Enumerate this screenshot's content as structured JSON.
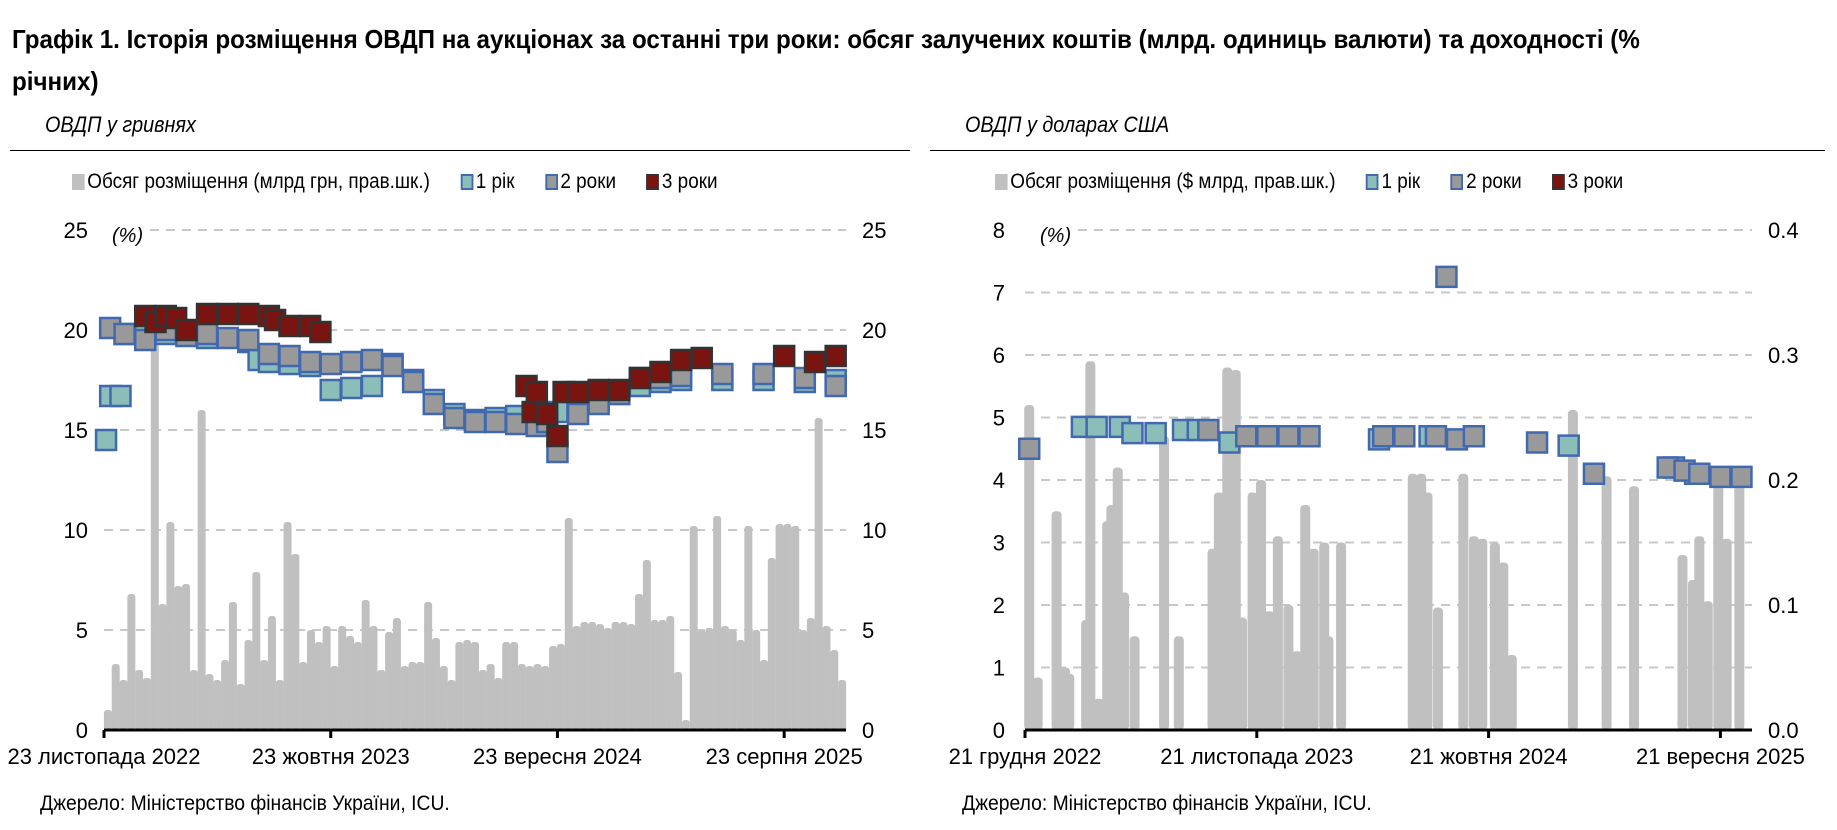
{
  "title": "Графік 1. Історія розміщення ОВДП на аукціонах за останні три роки: обсяг залучених коштів (млрд. одиниць валюти) та доходності (% річних)",
  "source_left": "Джерело: Міністерство фінансів України, ICU.",
  "source_right": "Джерело: Міністерство фінансів України, ICU.",
  "colors": {
    "bar": "#c0c0c0",
    "y1": "#8bbdb9",
    "y2": "#999999",
    "y3": "#7a1410",
    "border": "#4169b0",
    "border3": "#333333"
  },
  "chart_data": [
    {
      "type": "bar+scatter",
      "title": "ОВДП у гривнях",
      "unit_label": "(%)",
      "legend": [
        "Обсяг розміщення (млрд грн, прав.шк.)",
        "1 рік",
        "2 роки",
        "3 роки"
      ],
      "legend_placement": "top",
      "x_unit": "months since 23 Nov 2022",
      "x_range": [
        0,
        36
      ],
      "x_ticks": [
        {
          "x": 0,
          "label": "23 листопада 2022"
        },
        {
          "x": 11,
          "label": "23 жовтня 2023"
        },
        {
          "x": 22,
          "label": "23 вересня 2024"
        },
        {
          "x": 33,
          "label": "23 серпня 2025"
        }
      ],
      "y_left": {
        "range": [
          0,
          25
        ],
        "ticks": [
          "0",
          "5",
          "10",
          "15",
          "20",
          "25"
        ],
        "tick_values": [
          0,
          5,
          10,
          15,
          20,
          25
        ]
      },
      "y_right": {
        "range": [
          0,
          25
        ],
        "ticks": [
          "0",
          "5",
          "10",
          "15",
          "20",
          "25"
        ],
        "tick_values": [
          0,
          5,
          10,
          15,
          20,
          25
        ]
      },
      "grid": true,
      "bars_evenly_spaced": [
        1,
        3.3,
        2.5,
        6.8,
        3,
        2.6,
        20,
        6.3,
        10.4,
        7.2,
        7.3,
        3,
        16,
        2.8,
        2.5,
        3.5,
        6.4,
        2.3,
        4.5,
        7.9,
        3.5,
        5.7,
        2.5,
        10.4,
        8.8,
        3.4,
        5,
        4.4,
        5.2,
        3.2,
        5.2,
        4.7,
        4.4,
        6.5,
        5.2,
        3,
        4.9,
        5.6,
        3.2,
        3.4,
        3.4,
        6.4,
        4.6,
        3.2,
        2.5,
        4.4,
        4.5,
        4.4,
        3,
        3.3,
        2.6,
        4.4,
        4.4,
        3.3,
        3.2,
        3.3,
        3.2,
        4.2,
        4.3,
        10.6,
        5.2,
        5.4,
        5.4,
        5.3,
        5.1,
        5.4,
        5.4,
        5.3,
        6.8,
        8.5,
        5.5,
        5.5,
        5.7,
        2.9,
        0.5,
        10.2,
        5,
        5.1,
        10.7,
        5.2,
        5,
        4.5,
        10.2,
        5,
        3.5,
        8.6,
        10.3,
        10.3,
        10.2,
        5,
        5.6,
        15.6,
        5.2,
        4,
        2.5
      ],
      "series": [
        {
          "name": "1 рік",
          "key": "y1",
          "points": [
            [
              0.1,
              14.5
            ],
            [
              0.3,
              16.7
            ],
            [
              0.8,
              16.7
            ],
            [
              1,
              19.8
            ],
            [
              2,
              19.9
            ],
            [
              3,
              19.8
            ],
            [
              5,
              19.6
            ],
            [
              7,
              19.4
            ],
            [
              7.5,
              18.5
            ],
            [
              8,
              18.4
            ],
            [
              9,
              18.3
            ],
            [
              10,
              18.2
            ],
            [
              11,
              17.0
            ],
            [
              12,
              17.1
            ],
            [
              13,
              17.2
            ],
            [
              14,
              18.3
            ],
            [
              15,
              17.5
            ],
            [
              16,
              16.5
            ],
            [
              17,
              15.8
            ],
            [
              18,
              15.5
            ],
            [
              19,
              15.6
            ],
            [
              20,
              15.7
            ],
            [
              21,
              15.8
            ],
            [
              22,
              15.9
            ],
            [
              23,
              16.3
            ],
            [
              24,
              16.6
            ],
            [
              25,
              16.8
            ],
            [
              26,
              17.2
            ],
            [
              27,
              17.4
            ],
            [
              28,
              17.5
            ],
            [
              30,
              17.5
            ],
            [
              32,
              17.5
            ],
            [
              34,
              17.4
            ],
            [
              35.5,
              17.5
            ]
          ]
        },
        {
          "name": "2 роки",
          "key": "y2",
          "points": [
            [
              0.3,
              20.1
            ],
            [
              1,
              19.8
            ],
            [
              2,
              19.5
            ],
            [
              3,
              20.0
            ],
            [
              4,
              19.7
            ],
            [
              5,
              19.8
            ],
            [
              6,
              19.6
            ],
            [
              7,
              19.5
            ],
            [
              8,
              18.8
            ],
            [
              9,
              18.7
            ],
            [
              10,
              18.4
            ],
            [
              11,
              18.3
            ],
            [
              12,
              18.4
            ],
            [
              13,
              18.5
            ],
            [
              14,
              18.2
            ],
            [
              15,
              17.4
            ],
            [
              16,
              16.3
            ],
            [
              17,
              15.6
            ],
            [
              18,
              15.4
            ],
            [
              19,
              15.4
            ],
            [
              20,
              15.3
            ],
            [
              21,
              15.2
            ],
            [
              21.5,
              15.4
            ],
            [
              22,
              13.9
            ],
            [
              23,
              15.8
            ],
            [
              24,
              16.3
            ],
            [
              25,
              16.8
            ],
            [
              26,
              17.6
            ],
            [
              27,
              17.6
            ],
            [
              28,
              17.7
            ],
            [
              30,
              17.8
            ],
            [
              32,
              17.8
            ],
            [
              34,
              17.6
            ],
            [
              35.5,
              17.2
            ]
          ]
        },
        {
          "name": "3 роки",
          "key": "y3",
          "points": [
            [
              2,
              20.7
            ],
            [
              2.5,
              20.4
            ],
            [
              3,
              20.7
            ],
            [
              3.5,
              20.6
            ],
            [
              4,
              20.0
            ],
            [
              5,
              20.8
            ],
            [
              6,
              20.8
            ],
            [
              7,
              20.8
            ],
            [
              8,
              20.7
            ],
            [
              8.3,
              20.5
            ],
            [
              9,
              20.2
            ],
            [
              10,
              20.2
            ],
            [
              10.5,
              19.9
            ],
            [
              20.5,
              17.2
            ],
            [
              20.8,
              15.9
            ],
            [
              21,
              16.9
            ],
            [
              21.5,
              15.8
            ],
            [
              22,
              14.7
            ],
            [
              22.3,
              16.9
            ],
            [
              23,
              16.9
            ],
            [
              24,
              17.0
            ],
            [
              25,
              17.0
            ],
            [
              26,
              17.6
            ],
            [
              27,
              17.9
            ],
            [
              28,
              18.5
            ],
            [
              29,
              18.6
            ],
            [
              33,
              18.7
            ],
            [
              34.5,
              18.4
            ],
            [
              35.5,
              18.7
            ]
          ]
        }
      ]
    },
    {
      "type": "bar+scatter",
      "title": "ОВДП у доларах США",
      "unit_label": "(%)",
      "legend": [
        "Обсяг розміщення ($ млрд, прав.шк.)",
        "1 рік",
        "2 роки",
        "3 роки"
      ],
      "legend_placement": "top",
      "x_unit": "months since 21 Dec 2022",
      "x_range": [
        0,
        34.5
      ],
      "x_ticks": [
        {
          "x": 0,
          "label": "21 грудня 2022"
        },
        {
          "x": 11,
          "label": "21 листопада 2023"
        },
        {
          "x": 22,
          "label": "21 жовтня 2024"
        },
        {
          "x": 33,
          "label": "21 вересня 2025"
        }
      ],
      "y_left": {
        "range": [
          0,
          8
        ],
        "ticks": [
          "0",
          "1",
          "2",
          "3",
          "4",
          "5",
          "6",
          "7",
          "8"
        ],
        "tick_values": [
          0,
          1,
          2,
          3,
          4,
          5,
          6,
          7,
          8
        ]
      },
      "y_right": {
        "range": [
          0,
          0.4
        ],
        "ticks": [
          "0.0",
          "0.1",
          "0.2",
          "0.3",
          "0.4"
        ],
        "tick_values": [
          0,
          0.1,
          0.2,
          0.3,
          0.4
        ]
      },
      "grid": true,
      "bars": [
        [
          0.2,
          0.26
        ],
        [
          0.6,
          0.042
        ],
        [
          1.5,
          0.175
        ],
        [
          1.9,
          0.05
        ],
        [
          2.1,
          0.045
        ],
        [
          2.9,
          0.088
        ],
        [
          3.1,
          0.295
        ],
        [
          3.5,
          0.025
        ],
        [
          3.9,
          0.167
        ],
        [
          4.1,
          0.18
        ],
        [
          4.4,
          0.21
        ],
        [
          4.7,
          0.11
        ],
        [
          5.2,
          0.075
        ],
        [
          6.6,
          0.235
        ],
        [
          7.3,
          0.075
        ],
        [
          8.9,
          0.145
        ],
        [
          9.2,
          0.19
        ],
        [
          9.6,
          0.29
        ],
        [
          10.0,
          0.288
        ],
        [
          10.3,
          0.09
        ],
        [
          10.8,
          0.19
        ],
        [
          11.2,
          0.2
        ],
        [
          11.6,
          0.095
        ],
        [
          12.0,
          0.155
        ],
        [
          12.5,
          0.1
        ],
        [
          12.9,
          0.063
        ],
        [
          13.3,
          0.18
        ],
        [
          13.7,
          0.145
        ],
        [
          14.2,
          0.15
        ],
        [
          14.4,
          0.075
        ],
        [
          15.0,
          0.15
        ],
        [
          18.4,
          0.205
        ],
        [
          18.8,
          0.205
        ],
        [
          19.1,
          0.19
        ],
        [
          19.6,
          0.098
        ],
        [
          20.8,
          0.205
        ],
        [
          21.3,
          0.155
        ],
        [
          21.7,
          0.153
        ],
        [
          22.3,
          0.15
        ],
        [
          22.7,
          0.134
        ],
        [
          23.1,
          0.06
        ],
        [
          26.0,
          0.256
        ],
        [
          27.6,
          0.203
        ],
        [
          28.9,
          0.195
        ],
        [
          31.2,
          0.14
        ],
        [
          31.7,
          0.12
        ],
        [
          32.0,
          0.155
        ],
        [
          32.4,
          0.103
        ],
        [
          32.9,
          0.204
        ],
        [
          33.3,
          0.153
        ],
        [
          33.9,
          0.2
        ]
      ],
      "series": [
        {
          "name": "1 рік",
          "key": "y1",
          "points": [
            [
              2.7,
              4.85
            ],
            [
              3.4,
              4.85
            ],
            [
              4.5,
              4.85
            ],
            [
              5.1,
              4.75
            ],
            [
              6.2,
              4.75
            ],
            [
              7.5,
              4.8
            ],
            [
              8.2,
              4.8
            ],
            [
              9.7,
              4.6
            ],
            [
              16.8,
              4.65
            ],
            [
              19.2,
              4.7
            ],
            [
              25.8,
              4.55
            ],
            [
              30.8,
              4.2
            ],
            [
              31.8,
              4.1
            ]
          ]
        },
        {
          "name": "2 роки",
          "key": "y2",
          "points": [
            [
              0.2,
              4.5
            ],
            [
              8.7,
              4.8
            ],
            [
              10.5,
              4.7
            ],
            [
              11.5,
              4.7
            ],
            [
              12.5,
              4.7
            ],
            [
              13.5,
              4.7
            ],
            [
              17,
              4.7
            ],
            [
              18,
              4.7
            ],
            [
              19.5,
              4.7
            ],
            [
              20,
              7.25
            ],
            [
              20.5,
              4.65
            ],
            [
              21.3,
              4.7
            ],
            [
              24.3,
              4.6
            ],
            [
              27,
              4.1
            ],
            [
              30.5,
              4.2
            ],
            [
              31.3,
              4.15
            ],
            [
              32,
              4.1
            ],
            [
              33,
              4.05
            ],
            [
              34,
              4.05
            ]
          ]
        },
        {
          "name": "3 роки",
          "key": "y3",
          "points": []
        }
      ]
    }
  ]
}
